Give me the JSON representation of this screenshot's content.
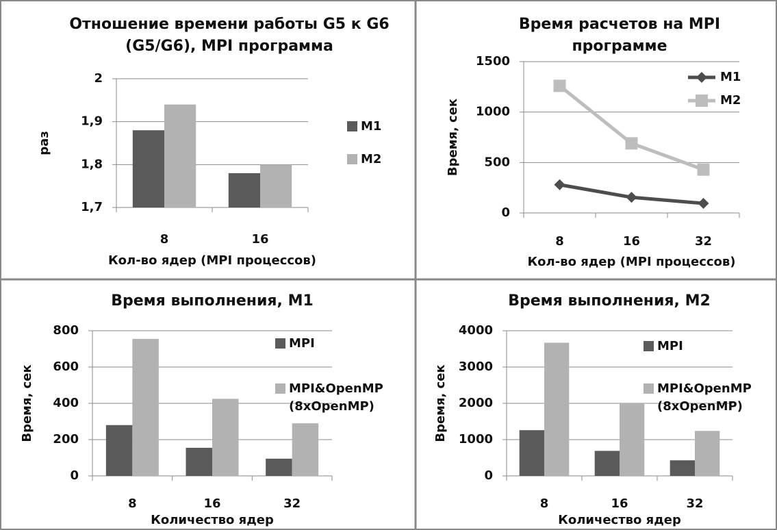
{
  "chart_data": [
    {
      "type": "bar",
      "title": "Отношение времени работы G5 к G6 (G5/G6), MPI программа",
      "y_label": "раз",
      "x_label": "Кол-во ядер (MPI процессов)",
      "categories": [
        "8",
        "16"
      ],
      "series": [
        {
          "name": "M1",
          "color": "#5a5a5a",
          "values": [
            1.88,
            1.78
          ]
        },
        {
          "name": "M2",
          "color": "#b2b2b2",
          "values": [
            1.94,
            1.8
          ]
        }
      ],
      "ylim": [
        1.7,
        2
      ],
      "yticks": [
        {
          "value": 1.7,
          "label": "1,7"
        },
        {
          "value": 1.8,
          "label": "1,8"
        },
        {
          "value": 1.9,
          "label": "1,9"
        },
        2
      ],
      "grid": true,
      "legend": "right"
    },
    {
      "type": "line",
      "title": "Время расчетов на MPI программе",
      "y_label": "Время, сек",
      "x_label": "Кол-во ядер (MPI процессов)",
      "categories": [
        "8",
        "16",
        "32"
      ],
      "series": [
        {
          "name": "M1",
          "color": "#4d4d4d",
          "marker": "diamond",
          "values": [
            280,
            155,
            95
          ]
        },
        {
          "name": "M2",
          "color": "#bdbdbd",
          "marker": "square",
          "values": [
            1260,
            690,
            430
          ]
        }
      ],
      "ylim": [
        0,
        1500
      ],
      "yticks": [
        0,
        500,
        1000,
        1500
      ],
      "grid": true,
      "legend": "right"
    },
    {
      "type": "bar",
      "title": "Время выполнения, M1",
      "y_label": "Время, сек",
      "x_label": "Количество ядер",
      "categories": [
        "8",
        "16",
        "32"
      ],
      "series": [
        {
          "name": "MPI",
          "color": "#5a5a5a",
          "values": [
            280,
            155,
            95
          ]
        },
        {
          "name": "MPI&OpenMP (8xOpenMP)",
          "color": "#b2b2b2",
          "values": [
            755,
            425,
            290
          ]
        }
      ],
      "ylim": [
        0,
        800
      ],
      "yticks": [
        0,
        200,
        400,
        600,
        800
      ],
      "grid": true,
      "legend": "right"
    },
    {
      "type": "bar",
      "title": "Время выполнения, M2",
      "y_label": "Время, сек",
      "x_label": "Количество ядер",
      "categories": [
        "8",
        "16",
        "32"
      ],
      "series": [
        {
          "name": "MPI",
          "color": "#5a5a5a",
          "values": [
            1260,
            690,
            430
          ]
        },
        {
          "name": "MPI&OpenMP (8xOpenMP)",
          "color": "#b2b2b2",
          "values": [
            3670,
            2000,
            1240
          ]
        }
      ],
      "ylim": [
        0,
        4000
      ],
      "yticks": [
        0,
        1000,
        2000,
        3000,
        4000
      ],
      "grid": true,
      "legend": "right"
    }
  ]
}
